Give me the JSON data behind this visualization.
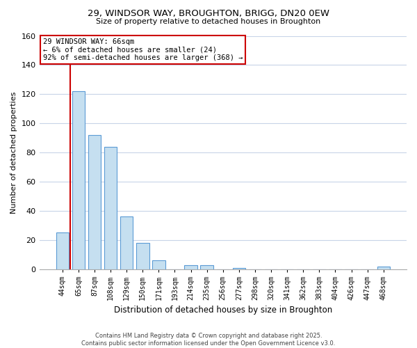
{
  "title1": "29, WINDSOR WAY, BROUGHTON, BRIGG, DN20 0EW",
  "title2": "Size of property relative to detached houses in Broughton",
  "xlabel": "Distribution of detached houses by size in Broughton",
  "ylabel": "Number of detached properties",
  "bar_labels": [
    "44sqm",
    "65sqm",
    "87sqm",
    "108sqm",
    "129sqm",
    "150sqm",
    "171sqm",
    "193sqm",
    "214sqm",
    "235sqm",
    "256sqm",
    "277sqm",
    "298sqm",
    "320sqm",
    "341sqm",
    "362sqm",
    "383sqm",
    "404sqm",
    "426sqm",
    "447sqm",
    "468sqm"
  ],
  "bar_values": [
    25,
    122,
    92,
    84,
    36,
    18,
    6,
    0,
    3,
    3,
    0,
    1,
    0,
    0,
    0,
    0,
    0,
    0,
    0,
    0,
    2
  ],
  "bar_color": "#c5dff0",
  "bar_edge_color": "#5b9bd5",
  "vline_x": 0.5,
  "vline_color": "#cc0000",
  "ylim": [
    0,
    160
  ],
  "yticks": [
    0,
    20,
    40,
    60,
    80,
    100,
    120,
    140,
    160
  ],
  "annotation_title": "29 WINDSOR WAY: 66sqm",
  "annotation_line1": "← 6% of detached houses are smaller (24)",
  "annotation_line2": "92% of semi-detached houses are larger (368) →",
  "footer1": "Contains HM Land Registry data © Crown copyright and database right 2025.",
  "footer2": "Contains public sector information licensed under the Open Government Licence v3.0.",
  "background_color": "#ffffff",
  "grid_color": "#c8d4e8"
}
